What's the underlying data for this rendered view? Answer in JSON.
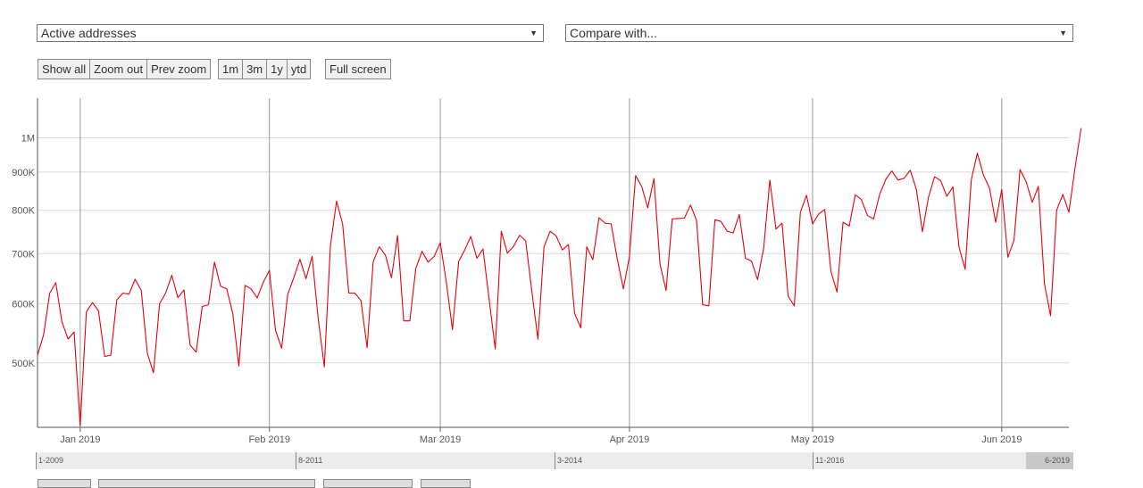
{
  "controls": {
    "metric_select": "Active addresses",
    "compare_select": "Compare with...",
    "arrow": "▼",
    "zoom_buttons": [
      "Show all",
      "Zoom out",
      "Prev zoom"
    ],
    "range_buttons": [
      "1m",
      "3m",
      "1y",
      "ytd"
    ],
    "fullscreen": "Full screen"
  },
  "navigator": {
    "labels": [
      "1-2009",
      "8-2011",
      "3-2014",
      "11-2016",
      "6-2019"
    ]
  },
  "chart_data": {
    "type": "line",
    "y_scale": "log",
    "ylim": [
      410000,
      1130000
    ],
    "xlim": [
      "2018-12-25",
      "2019-06-12"
    ],
    "x_ticks": [
      "Jan 2019",
      "Feb 2019",
      "Mar 2019",
      "Apr 2019",
      "May 2019",
      "Jun 2019"
    ],
    "y_ticks": [
      "500K",
      "600K",
      "700K",
      "800K",
      "900K",
      "1M"
    ],
    "grid": true,
    "series": [
      {
        "color": "#e8000b",
        "values": [
          512000,
          545000,
          620000,
          640000,
          568000,
          538000,
          550000,
          412000,
          585000,
          602000,
          587000,
          510000,
          512000,
          607000,
          620000,
          618000,
          647000,
          625000,
          515000,
          485000,
          600000,
          620000,
          655000,
          611000,
          626000,
          528000,
          517000,
          595000,
          598000,
          682000,
          633000,
          628000,
          582000,
          495000,
          635000,
          628000,
          611000,
          641000,
          665000,
          553000,
          523000,
          617000,
          650000,
          688000,
          648000,
          694000,
          572000,
          494000,
          717000,
          823000,
          767000,
          620000,
          620000,
          606000,
          524000,
          683000,
          715000,
          697000,
          650000,
          740000,
          569000,
          569000,
          669000,
          705000,
          682000,
          694000,
          724000,
          640000,
          554000,
          683000,
          708000,
          738000,
          690000,
          710000,
          609000,
          522000,
          750000,
          701000,
          716000,
          741000,
          728000,
          623000,
          538000,
          715000,
          750000,
          739000,
          708000,
          720000,
          583000,
          557000,
          715000,
          687000,
          782000,
          769000,
          767000,
          688000,
          628000,
          694000,
          890000,
          861000,
          806000,
          882000,
          678000,
          625000,
          779000,
          780000,
          781000,
          813000,
          775000,
          598000,
          596000,
          777000,
          773000,
          750000,
          746000,
          790000,
          690000,
          684000,
          646000,
          713000,
          878000,
          755000,
          769000,
          614000,
          596000,
          795000,
          838000,
          767000,
          791000,
          802000,
          663000,
          622000,
          771000,
          762000,
          839000,
          827000,
          787000,
          779000,
          840000,
          880000,
          903000,
          878000,
          883000,
          905000,
          854000,
          749000,
          833000,
          887000,
          876000,
          835000,
          860000,
          714000,
          667000,
          878000,
          954000,
          892000,
          856000,
          771000,
          853000,
          692000,
          729000,
          907000,
          873000,
          820000,
          861000,
          637000,
          578000,
          800000,
          840000,
          795000,
          910000,
          1030000
        ]
      }
    ]
  }
}
